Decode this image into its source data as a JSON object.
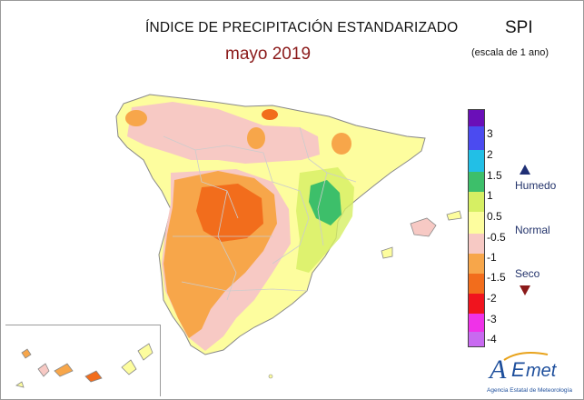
{
  "map": {
    "title": "ÍNDICE DE PRECIPITACIÓN ESTANDARIZADO",
    "subtitle": "mayo 2019",
    "index_name": "SPI",
    "scale_note": "(escala de 1 ano)"
  },
  "legend": {
    "ticks": [
      "3",
      "2",
      "1.5",
      "1",
      "0.5",
      "-0.5",
      "-1",
      "-1.5",
      "-2",
      "-3",
      "-4"
    ],
    "colors": [
      "#6a0fb8",
      "#4b4bf0",
      "#22bfe6",
      "#3dbf6a",
      "#d6ef63",
      "#fdfd9e",
      "#f7c9c4",
      "#f7a64a",
      "#f26d1c",
      "#f0141e",
      "#ef32e8",
      "#c86af0"
    ],
    "humid_label": "Humedo",
    "normal_label": "Normal",
    "dry_label": "Seco"
  },
  "logo": {
    "name": "AEmet",
    "agency": "Agencia Estatal de Meteorología"
  }
}
